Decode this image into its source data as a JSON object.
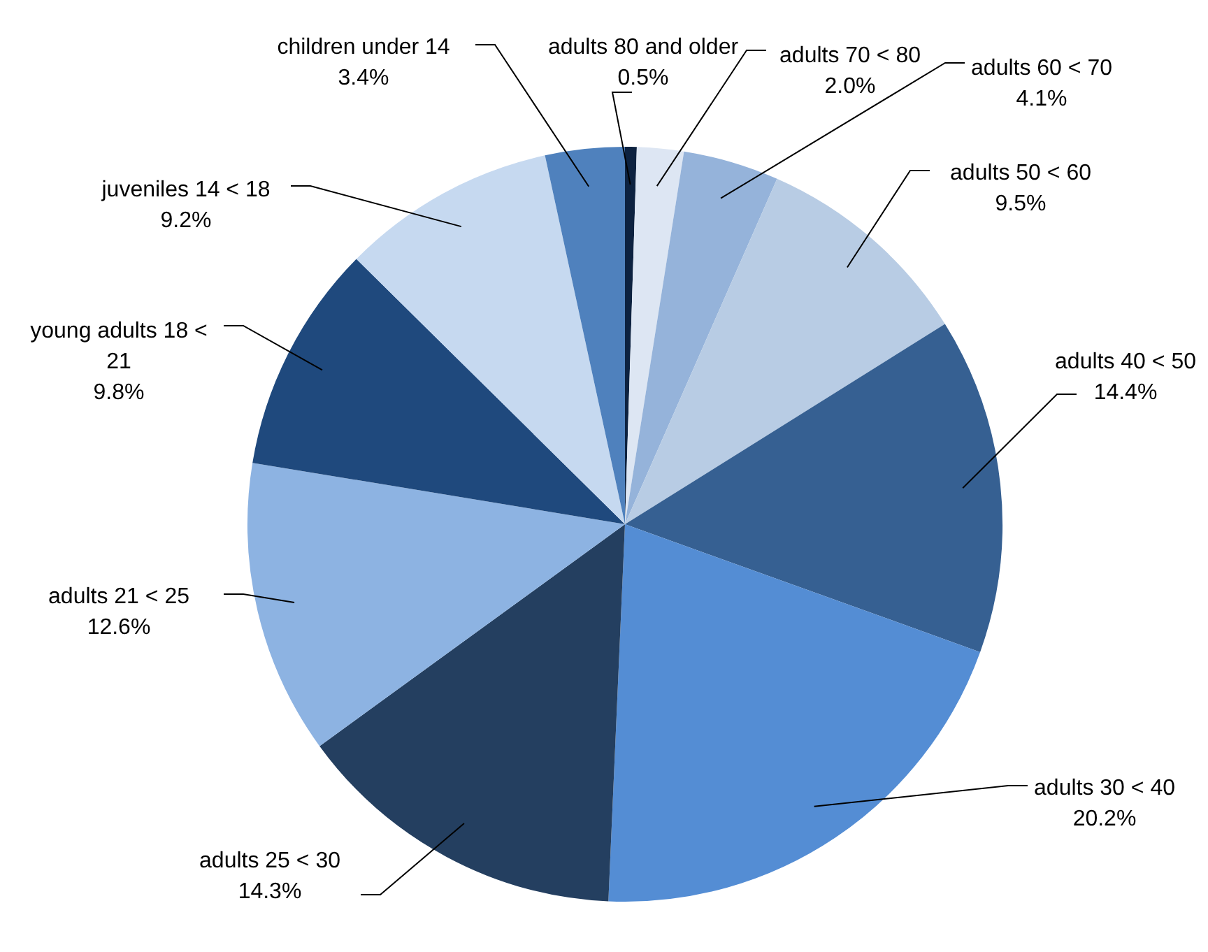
{
  "chart_data": {
    "type": "pie",
    "categories": [
      "adults 80 and older",
      "adults 70 < 80",
      "adults 60 < 70",
      "adults 50 < 60",
      "adults 40 < 50",
      "adults 30 < 40",
      "adults 25 < 30",
      "adults 21 < 25",
      "young adults 18 < 21",
      "juveniles 14 < 18",
      "children under 14"
    ],
    "values": [
      0.5,
      2.0,
      4.1,
      9.5,
      14.4,
      20.2,
      14.3,
      12.6,
      9.8,
      9.2,
      3.4
    ],
    "colors": [
      "#0d2240",
      "#dde6f3",
      "#95b3da",
      "#b8cce4",
      "#366092",
      "#548dd4",
      "#243f60",
      "#8db3e2",
      "#1f497d",
      "#c6d9f0",
      "#4f81bd"
    ],
    "value_labels": [
      "0.5%",
      "2.0%",
      "4.1%",
      "9.5%",
      "14.4%",
      "20.2%",
      "14.3%",
      "12.6%",
      "9.8%",
      "9.2%",
      "3.4%"
    ],
    "legend": false
  }
}
